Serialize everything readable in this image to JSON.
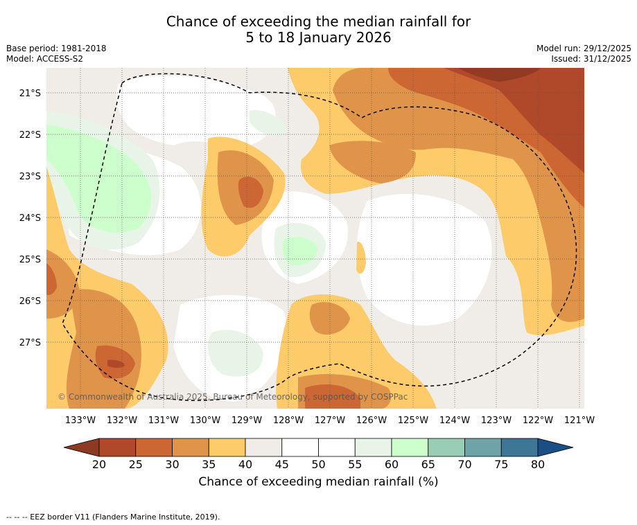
{
  "title_line1": "Chance of exceeding the median rainfall for",
  "title_line2": "5 to 18 January 2026",
  "base_period": "Base period: 1981-2018",
  "model": "Model: ACCESS-S2",
  "model_run": "Model run: 29/12/2025",
  "issued": "Issued: 31/12/2025",
  "copyright": "© Commonwealth of Australia 2025, Bureau of Meteorology, supported by COSPPac",
  "lat_labels": [
    "21°S",
    "22°S",
    "23°S",
    "24°S",
    "25°S",
    "26°S",
    "27°S"
  ],
  "lon_labels": [
    "133°W",
    "132°W",
    "131°W",
    "130°W",
    "129°W",
    "128°W",
    "127°W",
    "126°W",
    "125°W",
    "124°W",
    "123°W",
    "122°W",
    "121°W"
  ],
  "colorbar": {
    "ticks": [
      "20",
      "25",
      "30",
      "35",
      "40",
      "45",
      "50",
      "55",
      "60",
      "65",
      "70",
      "75",
      "80"
    ],
    "colors": [
      "#b0492a",
      "#cc6633",
      "#e0944a",
      "#fdcb6a",
      "#f0ede8",
      "#ffffff",
      "#ffffff",
      "#e8f4e8",
      "#ccffcc",
      "#99cdb5",
      "#6ea3a8",
      "#3e7796"
    ],
    "under_color": "#8e3a22",
    "over_color": "#1a4f86",
    "label": "Chance of exceeding median rainfall (%)"
  },
  "map_colors": {
    "c20": "#933a22",
    "c25": "#b0492a",
    "c30": "#cc6633",
    "c35": "#e0944a",
    "c40": "#fdcb6a",
    "c45": "#f0ede8",
    "c50": "#ffffff",
    "c55": "#e8f4e8",
    "c60": "#ccffcc"
  },
  "footnote": "-- -- -- EEZ border V11 (Flanders Marine Institute, 2019)."
}
